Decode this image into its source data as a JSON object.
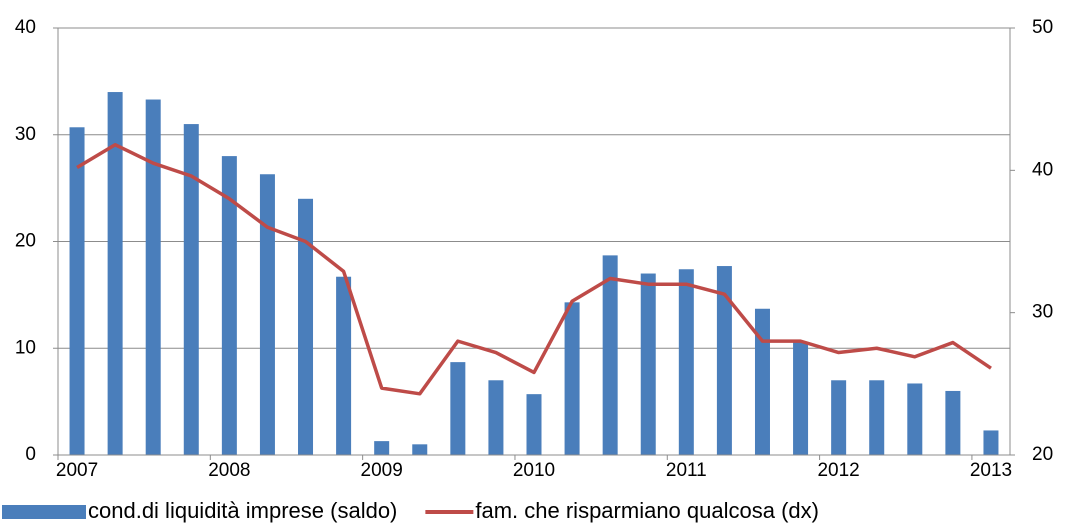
{
  "chart_data": {
    "type": "bar",
    "categories": [
      "2007",
      null,
      null,
      null,
      "2008",
      null,
      null,
      null,
      "2009",
      null,
      null,
      null,
      "2010",
      null,
      null,
      null,
      "2011",
      null,
      null,
      null,
      "2012",
      null,
      null,
      null,
      "2013"
    ],
    "series": [
      {
        "name": "cond.di liquidità imprese (saldo)",
        "type": "bar",
        "color": "#4a7ebb",
        "values": [
          30.7,
          34,
          33.3,
          31,
          28,
          26.3,
          24,
          16.7,
          1.3,
          1,
          8.7,
          7,
          5.7,
          14.3,
          18.7,
          17,
          17.4,
          17.7,
          13.7,
          10.6,
          7,
          7,
          6.7,
          6,
          2.3
        ]
      },
      {
        "name": "fam. che risparmiano qualcosa (dx)",
        "type": "line",
        "axis": "y2",
        "color": "#be4b48",
        "values": [
          40.2,
          41.8,
          40.5,
          39.6,
          38,
          36,
          35,
          32.9,
          24.7,
          24.3,
          28,
          27.2,
          25.8,
          30.8,
          32.4,
          32,
          32,
          31.3,
          28,
          28,
          27.2,
          27.5,
          26.9,
          27.9,
          26.1
        ]
      }
    ],
    "ylim": [
      0,
      40
    ],
    "yticks": [
      0,
      10,
      20,
      30,
      40
    ],
    "y2lim": [
      20,
      50
    ],
    "y2ticks": [
      20,
      30,
      40,
      50
    ],
    "grid": true,
    "legend": "bottom"
  }
}
